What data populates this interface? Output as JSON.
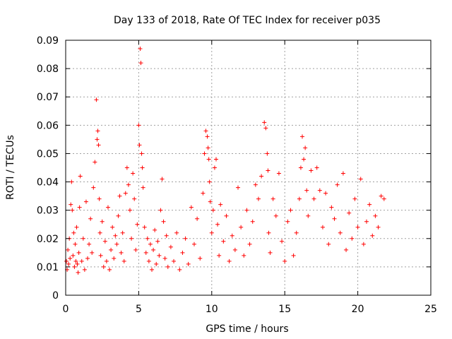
{
  "chart_data": {
    "type": "scatter",
    "title": "Day 133 of 2018, Rate Of TEC Index for receiver p035",
    "xlabel": "GPS time / hours",
    "ylabel": "ROTI / TECUs",
    "xlim": [
      0,
      25
    ],
    "ylim": [
      0,
      0.09
    ],
    "x_ticks": [
      0,
      5,
      10,
      15,
      20,
      25
    ],
    "x_tick_labels": [
      "0",
      "5",
      "10",
      "15",
      "20",
      "25"
    ],
    "y_ticks": [
      0,
      0.01,
      0.02,
      0.03,
      0.04,
      0.05,
      0.06,
      0.07,
      0.08,
      0.09
    ],
    "y_tick_labels": [
      "0",
      "0.01",
      "0.02",
      "0.03",
      "0.04",
      "0.05",
      "0.06",
      "0.07",
      "0.08",
      "0.09"
    ],
    "grid": true,
    "marker": "+",
    "color": "#ff0000",
    "series": [
      {
        "x": [
          0.05,
          0.1,
          0.15,
          0.2,
          0.25,
          0.3,
          0.35,
          0.4,
          0.45,
          0.5,
          0.55,
          0.6,
          0.65,
          0.7,
          0.75,
          0.8,
          0.85,
          0.9,
          0.95,
          1.0,
          1.1,
          1.2,
          1.3,
          1.4,
          1.5,
          1.6,
          1.7,
          1.8,
          1.9,
          2.0,
          2.1,
          2.15,
          2.2,
          2.25,
          2.3,
          2.35,
          2.4,
          2.5,
          2.6,
          2.7,
          2.8,
          2.9,
          3.0,
          3.1,
          3.2,
          3.3,
          3.4,
          3.5,
          3.6,
          3.7,
          3.8,
          3.9,
          4.0,
          4.1,
          4.2,
          4.3,
          4.4,
          4.5,
          4.6,
          4.7,
          4.8,
          4.9,
          5.0,
          5.05,
          5.1,
          5.15,
          5.2,
          5.25,
          5.3,
          5.4,
          5.5,
          5.6,
          5.7,
          5.8,
          5.9,
          6.0,
          6.1,
          6.2,
          6.3,
          6.4,
          6.5,
          6.6,
          6.7,
          6.8,
          6.9,
          7.0,
          7.2,
          7.4,
          7.6,
          7.8,
          8.0,
          8.2,
          8.4,
          8.6,
          8.8,
          9.0,
          9.2,
          9.4,
          9.5,
          9.6,
          9.7,
          9.75,
          9.8,
          9.85,
          9.9,
          10.0,
          10.1,
          10.2,
          10.3,
          10.4,
          10.5,
          10.6,
          10.8,
          11.0,
          11.2,
          11.4,
          11.6,
          11.8,
          12.0,
          12.2,
          12.4,
          12.6,
          12.8,
          13.0,
          13.2,
          13.4,
          13.6,
          13.7,
          13.8,
          13.85,
          13.9,
          14.0,
          14.2,
          14.4,
          14.6,
          14.8,
          15.0,
          15.2,
          15.4,
          15.6,
          15.8,
          16.0,
          16.1,
          16.2,
          16.3,
          16.4,
          16.5,
          16.6,
          16.8,
          17.0,
          17.2,
          17.4,
          17.6,
          17.8,
          18.0,
          18.2,
          18.4,
          18.6,
          18.8,
          19.0,
          19.2,
          19.4,
          19.6,
          19.8,
          20.0,
          20.2,
          20.4,
          20.6,
          20.8,
          21.0,
          21.2,
          21.4,
          21.6,
          21.8
        ],
        "y": [
          0.012,
          0.009,
          0.016,
          0.011,
          0.02,
          0.013,
          0.032,
          0.04,
          0.03,
          0.014,
          0.022,
          0.01,
          0.018,
          0.012,
          0.024,
          0.011,
          0.008,
          0.015,
          0.031,
          0.042,
          0.012,
          0.02,
          0.009,
          0.033,
          0.013,
          0.018,
          0.027,
          0.015,
          0.038,
          0.047,
          0.069,
          0.055,
          0.058,
          0.053,
          0.034,
          0.022,
          0.014,
          0.026,
          0.01,
          0.019,
          0.012,
          0.031,
          0.009,
          0.016,
          0.024,
          0.013,
          0.021,
          0.018,
          0.028,
          0.035,
          0.015,
          0.022,
          0.012,
          0.036,
          0.045,
          0.039,
          0.03,
          0.02,
          0.043,
          0.034,
          0.016,
          0.025,
          0.06,
          0.053,
          0.087,
          0.082,
          0.05,
          0.045,
          0.038,
          0.024,
          0.015,
          0.02,
          0.012,
          0.018,
          0.009,
          0.016,
          0.023,
          0.011,
          0.019,
          0.014,
          0.03,
          0.041,
          0.026,
          0.013,
          0.021,
          0.01,
          0.017,
          0.012,
          0.022,
          0.009,
          0.015,
          0.02,
          0.011,
          0.031,
          0.018,
          0.027,
          0.013,
          0.036,
          0.05,
          0.058,
          0.056,
          0.052,
          0.048,
          0.04,
          0.033,
          0.022,
          0.03,
          0.045,
          0.048,
          0.025,
          0.014,
          0.032,
          0.019,
          0.028,
          0.012,
          0.021,
          0.016,
          0.038,
          0.024,
          0.014,
          0.03,
          0.018,
          0.026,
          0.039,
          0.034,
          0.042,
          0.061,
          0.059,
          0.05,
          0.044,
          0.022,
          0.015,
          0.034,
          0.028,
          0.043,
          0.019,
          0.012,
          0.026,
          0.03,
          0.014,
          0.022,
          0.034,
          0.045,
          0.056,
          0.048,
          0.052,
          0.037,
          0.028,
          0.044,
          0.034,
          0.045,
          0.037,
          0.024,
          0.036,
          0.018,
          0.031,
          0.027,
          0.039,
          0.022,
          0.043,
          0.016,
          0.029,
          0.02,
          0.034,
          0.024,
          0.041,
          0.018,
          0.026,
          0.032,
          0.021,
          0.028,
          0.024,
          0.035,
          0.034
        ]
      }
    ]
  }
}
